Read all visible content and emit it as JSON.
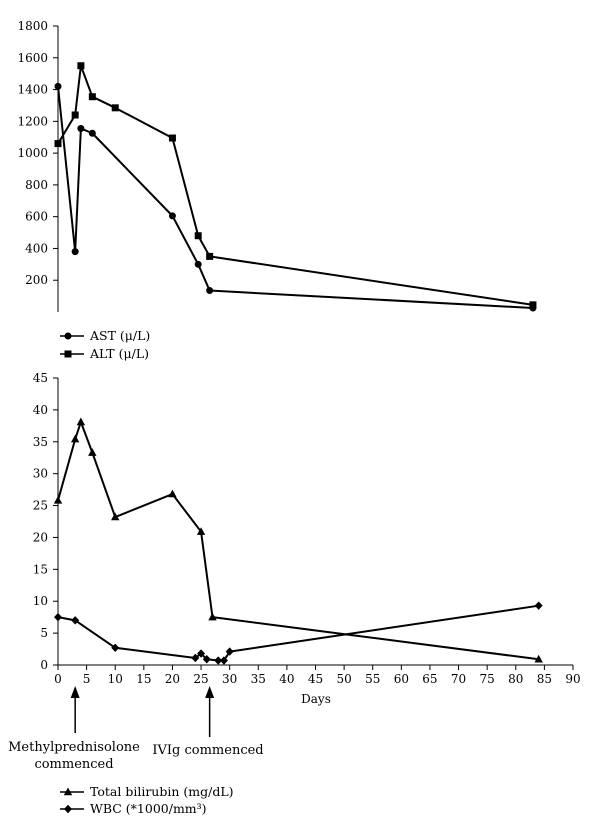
{
  "chart_data": [
    {
      "type": "line",
      "title": "",
      "xlabel": "",
      "ylabel": "",
      "ylim": [
        0,
        1800
      ],
      "yticks": [
        200,
        400,
        600,
        800,
        1000,
        1200,
        1400,
        1600,
        1800
      ],
      "x_range": [
        0,
        90
      ],
      "legend_position": "bottom-left",
      "grid": false,
      "series": [
        {
          "name": "AST (μ/L)",
          "marker": "circle",
          "points": [
            [
              0,
              1420
            ],
            [
              3,
              380
            ],
            [
              4,
              1155
            ],
            [
              6,
              1125
            ],
            [
              20,
              605
            ],
            [
              24.5,
              300
            ],
            [
              26.5,
              135
            ],
            [
              83,
              25
            ]
          ]
        },
        {
          "name": "ALT (μ/L)",
          "marker": "square",
          "points": [
            [
              0,
              1060
            ],
            [
              3,
              1240
            ],
            [
              4,
              1550
            ],
            [
              6,
              1355
            ],
            [
              10,
              1285
            ],
            [
              20,
              1095
            ],
            [
              24.5,
              480
            ],
            [
              26.5,
              350
            ],
            [
              83,
              45
            ]
          ]
        }
      ]
    },
    {
      "type": "line",
      "title": "",
      "xlabel": "Days",
      "ylabel": "",
      "ylim": [
        0,
        45
      ],
      "yticks": [
        0,
        5,
        10,
        15,
        20,
        25,
        30,
        35,
        40,
        45
      ],
      "xlim": [
        0,
        90
      ],
      "xticks": [
        0,
        5,
        10,
        15,
        20,
        25,
        30,
        35,
        40,
        45,
        50,
        55,
        60,
        65,
        70,
        75,
        80,
        85,
        90
      ],
      "legend_position": "bottom-left",
      "grid": false,
      "series": [
        {
          "name": "Total bilirubin (mg/dL)",
          "marker": "triangle",
          "points": [
            [
              0,
              25.8
            ],
            [
              3,
              35.4
            ],
            [
              4,
              38.1
            ],
            [
              6,
              33.3
            ],
            [
              10,
              23.2
            ],
            [
              20,
              26.8
            ],
            [
              25,
              20.9
            ],
            [
              27,
              7.5
            ],
            [
              84,
              0.9
            ]
          ]
        },
        {
          "name": "WBC (*1000/mm³)",
          "marker": "diamond",
          "points": [
            [
              0,
              7.5
            ],
            [
              3,
              7.0
            ],
            [
              10,
              2.7
            ],
            [
              24,
              1.1
            ],
            [
              25,
              1.8
            ],
            [
              26,
              0.9
            ],
            [
              28,
              0.7
            ],
            [
              29,
              0.7
            ],
            [
              30,
              2.1
            ],
            [
              84,
              9.3
            ]
          ]
        }
      ],
      "annotations": [
        {
          "x": 3,
          "text_line1": "Methylprednisolone",
          "text_line2": "commenced"
        },
        {
          "x": 26.5,
          "text_line1": "IVIg commenced",
          "text_line2": ""
        }
      ]
    }
  ]
}
